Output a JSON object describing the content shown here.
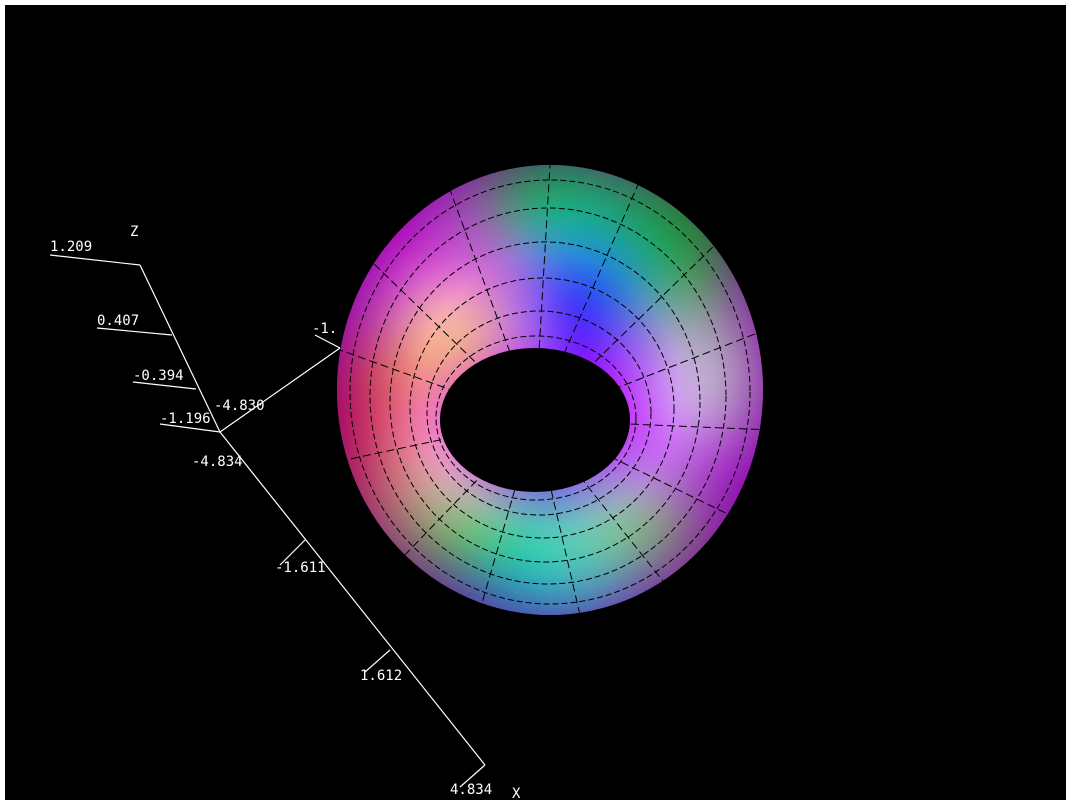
{
  "axes": {
    "z": {
      "label": "Z",
      "ticks": [
        "1.209",
        "0.407",
        "-0.394",
        "-1.196"
      ]
    },
    "y": {
      "ticks": [
        "-4.830",
        "-1."
      ]
    },
    "x": {
      "label": "X",
      "ticks": [
        "-4.834",
        "-1.611",
        "1.612",
        "4.834"
      ]
    }
  }
}
